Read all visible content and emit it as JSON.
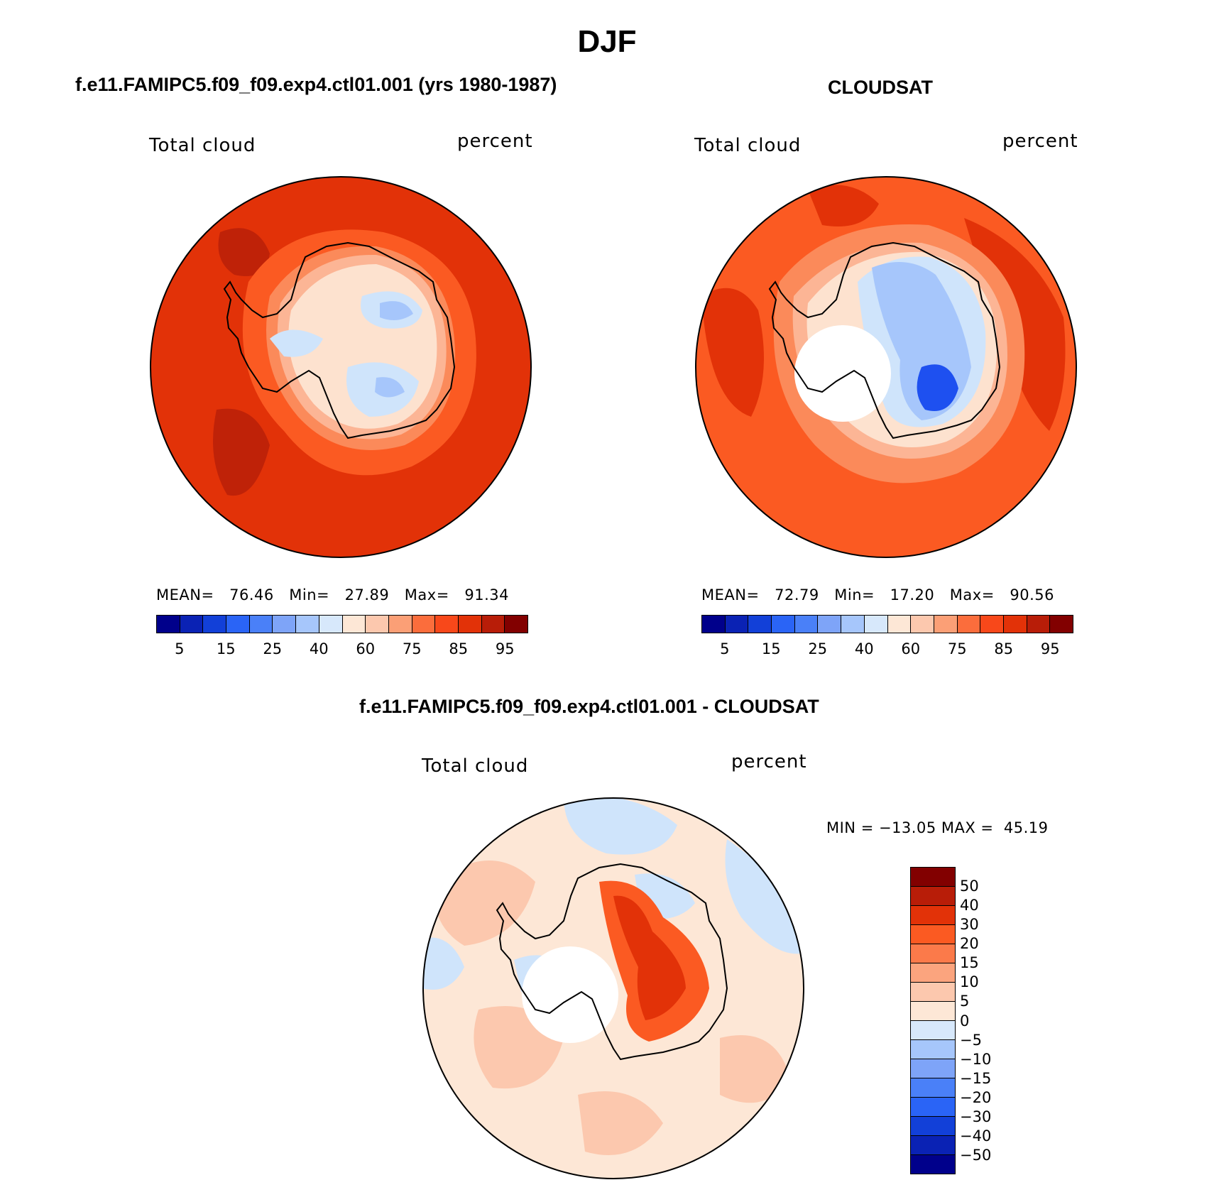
{
  "title": "DJF",
  "panels": {
    "model": {
      "title": "f.e11.FAMIPC5.f09_f09.exp4.ctl01.001 (yrs 1980-1987)",
      "variable": "Total cloud",
      "units": "percent",
      "stats": {
        "mean_label": "MEAN=",
        "mean": "76.46",
        "min_label": "Min=",
        "min": "27.89",
        "max_label": "Max=",
        "max": "91.34"
      },
      "map_colors": {
        "ocean": "#e23208",
        "ocean_dark": "#bf2208",
        "ring": "#fb5a22",
        "coast1": "#fb8a5a",
        "coast2": "#fcb595",
        "ice": "#fde2cf",
        "ice_blue": "#cfe4fb",
        "deep_blue": "#a6c6fb"
      }
    },
    "obs": {
      "title": "CLOUDSAT",
      "variable": "Total cloud",
      "units": "percent",
      "stats": {
        "mean_label": "MEAN=",
        "mean": "72.79",
        "min_label": "Min=",
        "min": "17.20",
        "max_label": "Max=",
        "max": "90.56"
      },
      "map_colors": {
        "ocean": "#fb5a22",
        "ocean_dark": "#e23208",
        "ring": "#fb8a5a",
        "coast1": "#fcb595",
        "coast2": "#fde2cf",
        "ice": "#cfe4fb",
        "ice_blue": "#a6c6fb",
        "deep_blue": "#1e50f0"
      }
    },
    "diff": {
      "title": "f.e11.FAMIPC5.f09_f09.exp4.ctl01.001 - CLOUDSAT",
      "variable": "Total cloud",
      "units": "percent",
      "stats_text": "MIN = −13.05 MAX =  45.19",
      "map_colors": {
        "base": "#fde7d6",
        "warm": "#fcc8ae",
        "warmer": "#fb9f76",
        "blue": "#cfe4fb",
        "hot": "#fb5a22",
        "hotter": "#e23208"
      }
    }
  },
  "colorbar_main": {
    "colors": [
      "#00008b",
      "#0a22b4",
      "#1240d8",
      "#2a64f6",
      "#4a80f8",
      "#7ea4f8",
      "#a6c6fb",
      "#d7e8fb",
      "#fde7d6",
      "#fcc8ae",
      "#fb9f76",
      "#fb6d3c",
      "#f8481a",
      "#e23208",
      "#b81d08",
      "#820000"
    ],
    "tick_labels": [
      "5",
      "15",
      "25",
      "40",
      "60",
      "75",
      "85",
      "95"
    ]
  },
  "colorbar_diff": {
    "colors": [
      "#820000",
      "#b81d08",
      "#e23208",
      "#fb5a22",
      "#fb7a4a",
      "#fba47e",
      "#fcc8ae",
      "#fde7d6",
      "#d7e8fb",
      "#a6c6fb",
      "#7ea4f8",
      "#4a80f8",
      "#2a64f6",
      "#1240d8",
      "#0a22b4",
      "#00008b"
    ],
    "tick_labels": [
      "50",
      "40",
      "30",
      "20",
      "15",
      "10",
      "5",
      "0",
      "−5",
      "−10",
      "−15",
      "−20",
      "−30",
      "−40",
      "−50"
    ]
  }
}
